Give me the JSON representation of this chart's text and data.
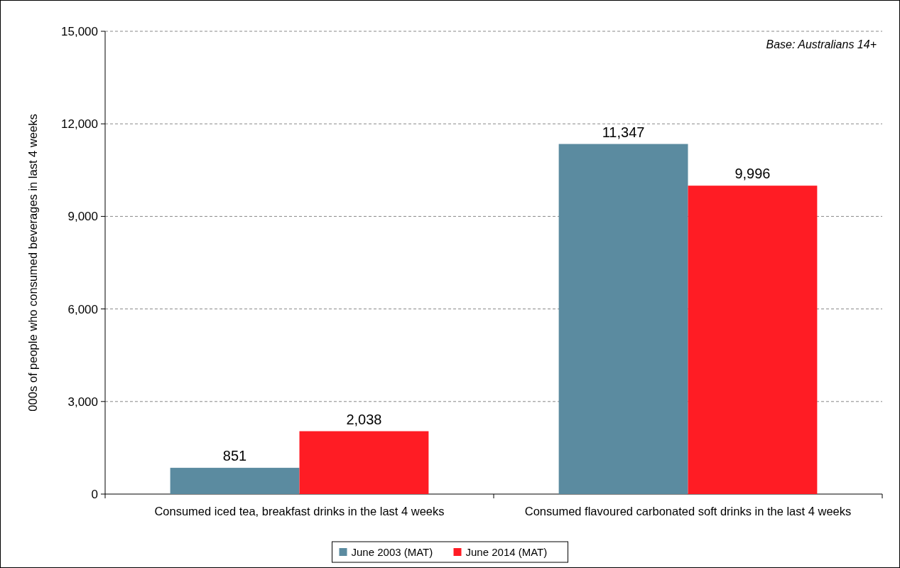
{
  "chart_data": {
    "type": "bar",
    "ylabel": "000s of people who consumed beverages in last 4 weeks",
    "categories": [
      "Consumed iced tea, breakfast drinks in the last 4 weeks",
      "Consumed flavoured carbonated soft drinks in the last 4 weeks"
    ],
    "series": [
      {
        "name": "June 2003 (MAT)",
        "color": "#5b8ba0",
        "values": [
          851,
          11347
        ],
        "value_labels": [
          "851",
          "11,347"
        ]
      },
      {
        "name": "June 2014 (MAT)",
        "color": "#ff1c24",
        "values": [
          2038,
          9996
        ],
        "value_labels": [
          "2,038",
          "9,996"
        ]
      }
    ],
    "ylim": [
      0,
      15000
    ],
    "yticks": [
      {
        "value": 0,
        "label": "0"
      },
      {
        "value": 3000,
        "label": "3,000"
      },
      {
        "value": 6000,
        "label": "6,000"
      },
      {
        "value": 9000,
        "label": "9,000"
      },
      {
        "value": 12000,
        "label": "12,000"
      },
      {
        "value": 15000,
        "label": "15,000"
      }
    ],
    "grid": "y",
    "legend": "bottom",
    "annotations": [
      "Base: Australians 14+"
    ]
  }
}
